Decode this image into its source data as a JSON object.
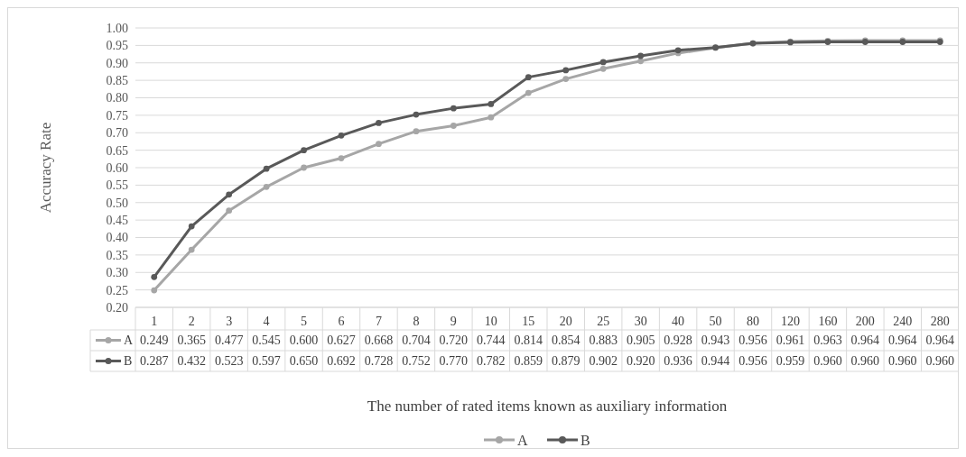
{
  "chart_data": {
    "type": "line",
    "xlabel": "The number of rated items known as auxiliary information",
    "ylabel": "Accuracy Rate",
    "categories": [
      "1",
      "2",
      "3",
      "4",
      "5",
      "6",
      "7",
      "8",
      "9",
      "10",
      "15",
      "20",
      "25",
      "30",
      "40",
      "50",
      "80",
      "120",
      "160",
      "200",
      "240",
      "280"
    ],
    "series": [
      {
        "name": "A",
        "color": "#a6a6a6",
        "values": [
          0.249,
          0.365,
          0.477,
          0.545,
          0.6,
          0.627,
          0.668,
          0.704,
          0.72,
          0.744,
          0.814,
          0.854,
          0.883,
          0.905,
          0.928,
          0.943,
          0.956,
          0.961,
          0.963,
          0.964,
          0.964,
          0.964
        ],
        "value_labels": [
          "0.249",
          "0.365",
          "0.477",
          "0.545",
          "0.600",
          "0.627",
          "0.668",
          "0.704",
          "0.720",
          "0.744",
          "0.814",
          "0.854",
          "0.883",
          "0.905",
          "0.928",
          "0.943",
          "0.956",
          "0.961",
          "0.963",
          "0.964",
          "0.964",
          "0.964"
        ]
      },
      {
        "name": "B",
        "color": "#595959",
        "values": [
          0.287,
          0.432,
          0.523,
          0.597,
          0.65,
          0.692,
          0.728,
          0.752,
          0.77,
          0.782,
          0.859,
          0.879,
          0.902,
          0.92,
          0.936,
          0.944,
          0.956,
          0.959,
          0.96,
          0.96,
          0.96,
          0.96
        ],
        "value_labels": [
          "0.287",
          "0.432",
          "0.523",
          "0.597",
          "0.650",
          "0.692",
          "0.728",
          "0.752",
          "0.770",
          "0.782",
          "0.859",
          "0.879",
          "0.902",
          "0.920",
          "0.936",
          "0.944",
          "0.956",
          "0.959",
          "0.960",
          "0.960",
          "0.960",
          "0.960"
        ]
      }
    ],
    "ylim": [
      0.2,
      1.0
    ],
    "yticks": [
      {
        "value": 0.2,
        "label": "0.20"
      },
      {
        "value": 0.25,
        "label": "0.25"
      },
      {
        "value": 0.3,
        "label": "0.30"
      },
      {
        "value": 0.35,
        "label": "0.35"
      },
      {
        "value": 0.4,
        "label": "0.40"
      },
      {
        "value": 0.45,
        "label": "0.45"
      },
      {
        "value": 0.5,
        "label": "0.50"
      },
      {
        "value": 0.55,
        "label": "0.55"
      },
      {
        "value": 0.6,
        "label": "0.60"
      },
      {
        "value": 0.65,
        "label": "0.65"
      },
      {
        "value": 0.7,
        "label": "0.70"
      },
      {
        "value": 0.75,
        "label": "0.75"
      },
      {
        "value": 0.8,
        "label": "0.80"
      },
      {
        "value": 0.85,
        "label": "0.85"
      },
      {
        "value": 0.9,
        "label": "0.90"
      },
      {
        "value": 0.95,
        "label": "0.95"
      },
      {
        "value": 1.0,
        "label": "1.00"
      }
    ],
    "grid": "y",
    "legend": "bottom",
    "marker": "circle",
    "line_style": "solid"
  }
}
